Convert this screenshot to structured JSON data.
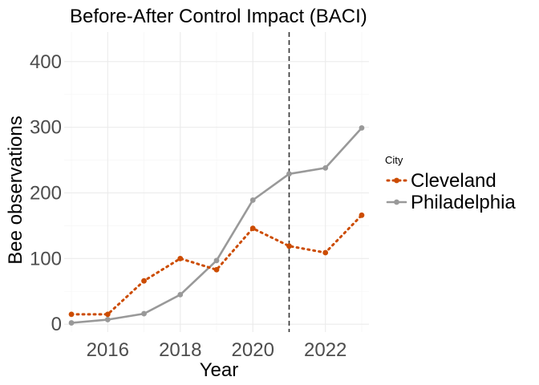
{
  "chart_data": {
    "type": "line",
    "title": "Before-After Control Impact (BACI)",
    "xlabel": "Year",
    "ylabel": "Bee observations",
    "x": [
      2015,
      2016,
      2017,
      2018,
      2019,
      2020,
      2021,
      2022,
      2023
    ],
    "xlim": [
      2014.8,
      2023.2
    ],
    "ylim": [
      -12,
      445
    ],
    "x_ticks": [
      "2016",
      "2018",
      "2020",
      "2022"
    ],
    "x_tick_values": [
      2016,
      2018,
      2020,
      2022
    ],
    "y_ticks": [
      "0",
      "100",
      "200",
      "300",
      "400"
    ],
    "y_tick_values": [
      0,
      100,
      200,
      300,
      400
    ],
    "grid": true,
    "legend_position": "right",
    "legend_title": "City",
    "vline": {
      "x": 2021,
      "style": "dashed",
      "color": "#333333"
    },
    "series": [
      {
        "name": "Cleveland",
        "color": "#cc4c02",
        "style": "dotted",
        "values": [
          15,
          15,
          66,
          100,
          83,
          146,
          119,
          109,
          166
        ]
      },
      {
        "name": "Philadelphia",
        "color": "#999999",
        "style": "solid",
        "values": [
          2,
          7,
          16,
          45,
          97,
          189,
          229,
          238,
          299
        ]
      }
    ]
  }
}
